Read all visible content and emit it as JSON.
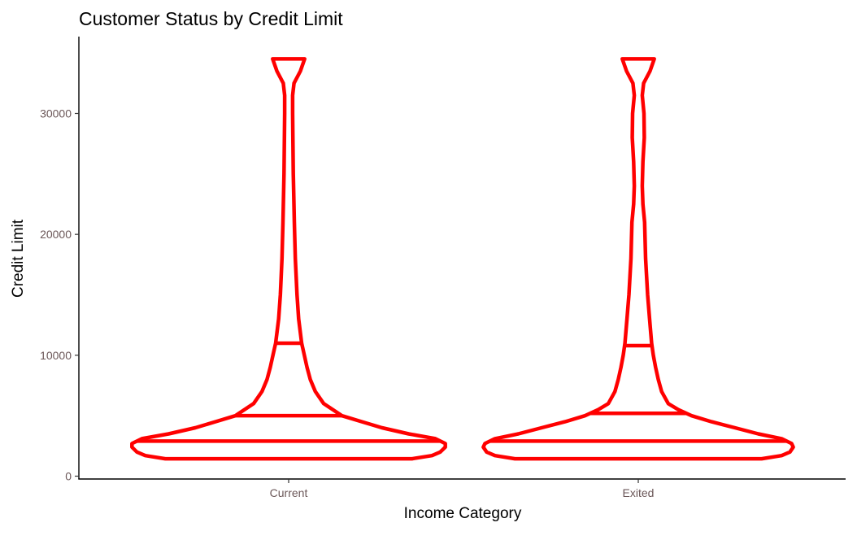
{
  "chart_data": {
    "type": "violin",
    "title": "Customer Status by Credit Limit",
    "xlabel": "Income Category",
    "ylabel": "Credit Limit",
    "categories": [
      "Current",
      "Exited"
    ],
    "ylim": [
      0,
      34516
    ],
    "yticks": [
      0,
      10000,
      20000,
      30000
    ],
    "ytick_labels": [
      "0",
      "10000",
      "20000",
      "30000"
    ],
    "grid": false,
    "legend": "none",
    "colors": {
      "outline": "#ff0000",
      "axis": "#000000",
      "tick_text": "#6b5758"
    },
    "violins": [
      {
        "category": "Current",
        "quantiles": [
          2900,
          5000,
          11000
        ],
        "density_profile": [
          [
            1438,
            0.37
          ],
          [
            1700,
            0.43
          ],
          [
            2000,
            0.455
          ],
          [
            2400,
            0.47
          ],
          [
            2700,
            0.47
          ],
          [
            3100,
            0.44
          ],
          [
            3500,
            0.36
          ],
          [
            4000,
            0.28
          ],
          [
            4500,
            0.22
          ],
          [
            5000,
            0.16
          ],
          [
            6000,
            0.105
          ],
          [
            7000,
            0.08
          ],
          [
            8000,
            0.065
          ],
          [
            9000,
            0.055
          ],
          [
            10000,
            0.047
          ],
          [
            11000,
            0.039
          ],
          [
            13000,
            0.03
          ],
          [
            15000,
            0.025
          ],
          [
            18000,
            0.02
          ],
          [
            21000,
            0.017
          ],
          [
            25000,
            0.014
          ],
          [
            30000,
            0.012
          ],
          [
            31500,
            0.012
          ],
          [
            32500,
            0.016
          ],
          [
            33500,
            0.035
          ],
          [
            34516,
            0.048
          ]
        ]
      },
      {
        "category": "Exited",
        "quantiles": [
          2900,
          5200,
          10800
        ],
        "density_profile": [
          [
            1438,
            0.37
          ],
          [
            1700,
            0.43
          ],
          [
            2000,
            0.455
          ],
          [
            2400,
            0.465
          ],
          [
            2700,
            0.46
          ],
          [
            3100,
            0.43
          ],
          [
            3500,
            0.36
          ],
          [
            4000,
            0.29
          ],
          [
            4500,
            0.22
          ],
          [
            5000,
            0.16
          ],
          [
            5500,
            0.12
          ],
          [
            6000,
            0.09
          ],
          [
            7000,
            0.07
          ],
          [
            8000,
            0.06
          ],
          [
            9000,
            0.052
          ],
          [
            10000,
            0.045
          ],
          [
            11000,
            0.04
          ],
          [
            13000,
            0.034
          ],
          [
            15000,
            0.028
          ],
          [
            18000,
            0.022
          ],
          [
            21000,
            0.019
          ],
          [
            22500,
            0.014
          ],
          [
            24000,
            0.012
          ],
          [
            26000,
            0.014
          ],
          [
            28000,
            0.018
          ],
          [
            30000,
            0.017
          ],
          [
            31500,
            0.012
          ],
          [
            32500,
            0.016
          ],
          [
            33500,
            0.035
          ],
          [
            34516,
            0.048
          ]
        ]
      }
    ]
  }
}
